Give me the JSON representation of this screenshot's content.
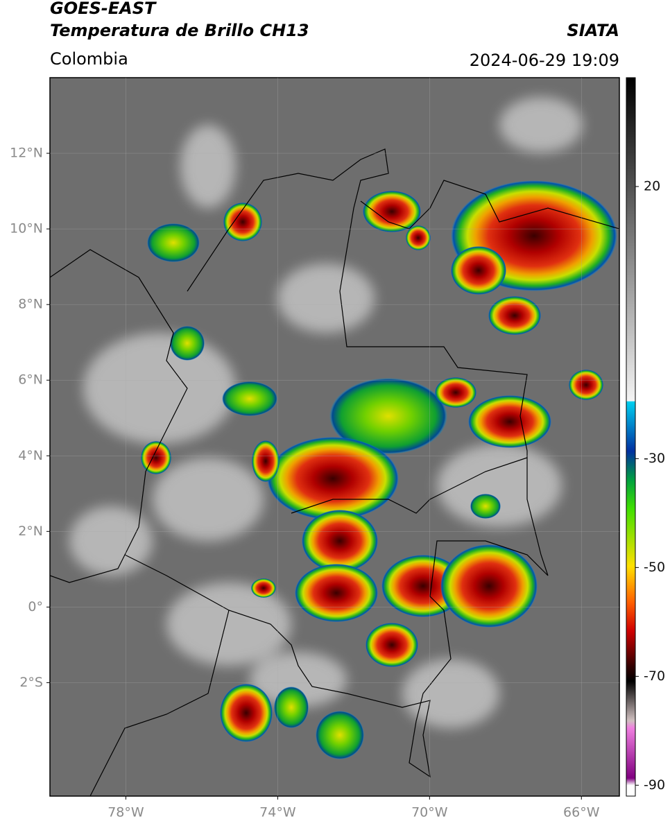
{
  "header": {
    "satellite": "GOES-EAST",
    "product": "Temperatura de Brillo CH13",
    "source": "SIATA",
    "region": "Colombia",
    "timestamp": "2024-06-29 19:09"
  },
  "map": {
    "xlim": [
      -80,
      -65
    ],
    "ylim": [
      -5,
      14
    ],
    "xticks": [
      {
        "value": -78,
        "label": "78°W"
      },
      {
        "value": -74,
        "label": "74°W"
      },
      {
        "value": -70,
        "label": "70°W"
      },
      {
        "value": -66,
        "label": "66°W"
      }
    ],
    "yticks": [
      {
        "value": 12,
        "label": "12°N"
      },
      {
        "value": 10,
        "label": "10°N"
      },
      {
        "value": 8,
        "label": "8°N"
      },
      {
        "value": 6,
        "label": "6°N"
      },
      {
        "value": 4,
        "label": "4°N"
      },
      {
        "value": 2,
        "label": "2°N"
      },
      {
        "value": 0,
        "label": "0°"
      },
      {
        "value": -2,
        "label": "2°S"
      }
    ]
  },
  "colorbar": {
    "lim": [
      -92,
      40
    ],
    "ticks": [
      20,
      -30,
      -50,
      -70,
      -90
    ]
  }
}
